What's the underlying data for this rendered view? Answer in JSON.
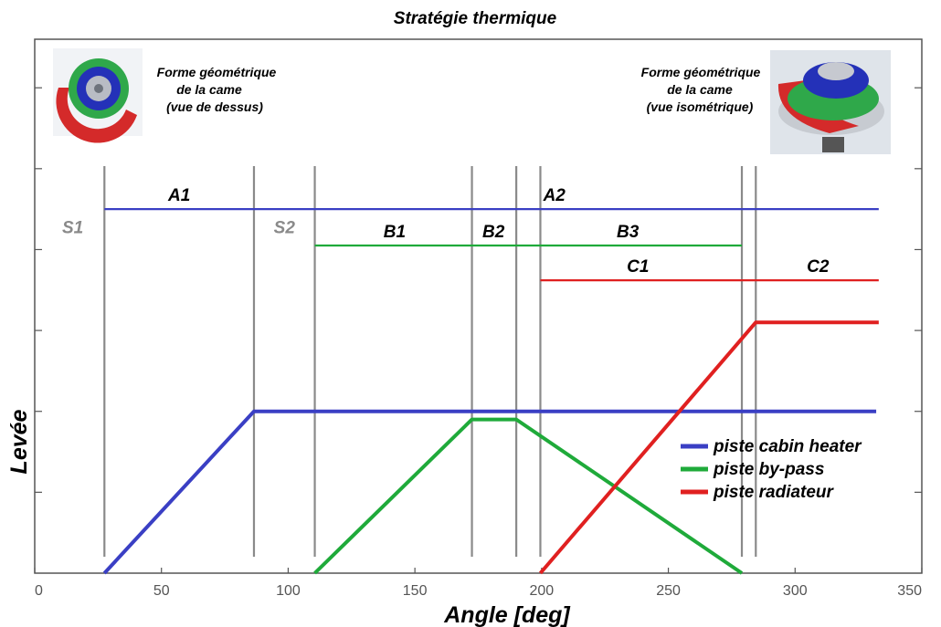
{
  "chart_data": {
    "type": "line",
    "title": "Stratégie thermique",
    "xlabel": "Angle [deg]",
    "ylabel": "Levée",
    "xlim": [
      0,
      350
    ],
    "ylim": [
      0,
      6.6
    ],
    "xticks": [
      0,
      50,
      100,
      150,
      200,
      250,
      300,
      350
    ],
    "grid": false,
    "legend_position": "center-right",
    "series": [
      {
        "name": "piste cabin heater",
        "color": "#3a3fc4",
        "x": [
          27.5,
          86.5,
          332
        ],
        "y": [
          0,
          2,
          2
        ]
      },
      {
        "name": "piste by-pass",
        "color": "#1faa3a",
        "x": [
          110.5,
          172.5,
          190,
          279
        ],
        "y": [
          0,
          1.9,
          1.9,
          0
        ]
      },
      {
        "name": "piste radiateur",
        "color": "#e02020",
        "x": [
          199.5,
          284.5,
          333
        ],
        "y": [
          0,
          3.1,
          3.1
        ]
      }
    ],
    "phase_lines": [
      {
        "label": "A1",
        "color": "#3a3fc4",
        "from": 27.5,
        "to": 86.5,
        "y": 4.5,
        "label_x": 57
      },
      {
        "label": "A2",
        "color": "#3a3fc4",
        "from": 86.5,
        "to": 333,
        "y": 4.5,
        "label_x": 205
      },
      {
        "label": "B1",
        "color": "#1faa3a",
        "from": 110.5,
        "to": 279,
        "y": 4.05,
        "label_x": 142
      },
      {
        "label": "B2",
        "color": "#1faa3a",
        "from": 110.5,
        "to": 279,
        "y": 4.05,
        "label_x": 181
      },
      {
        "label": "B3",
        "color": "#1faa3a",
        "from": 110.5,
        "to": 279,
        "y": 4.05,
        "label_x": 234
      },
      {
        "label": "C1",
        "color": "#e02020",
        "from": 199.5,
        "to": 333,
        "y": 3.62,
        "label_x": 238
      },
      {
        "label": "C2",
        "color": "#e02020",
        "from": 199.5,
        "to": 333,
        "y": 3.62,
        "label_x": 309
      }
    ],
    "vertical_lines_x": [
      27.5,
      86.5,
      110.5,
      172.5,
      190,
      199.5,
      279,
      284.5
    ],
    "state_labels": [
      {
        "label": "S1",
        "x": 15,
        "y": 4.2
      },
      {
        "label": "S2",
        "x": 98.5,
        "y": 4.2
      }
    ]
  },
  "captions": {
    "left": [
      "Forme géométrique",
      "de la came",
      "(vue de dessus)"
    ],
    "right": [
      "Forme géométrique",
      "de la came",
      "(vue isométrique)"
    ]
  }
}
